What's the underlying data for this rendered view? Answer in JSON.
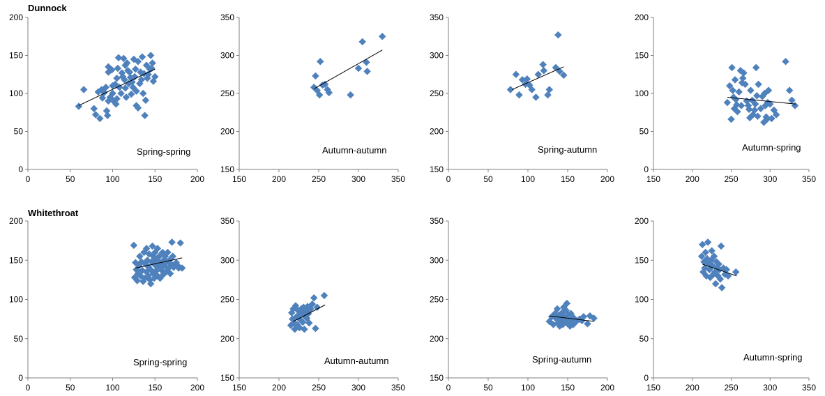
{
  "figure": {
    "row_titles": [
      "Dunnock",
      "Whitethroat"
    ]
  },
  "colors": {
    "point": "#4F81BD",
    "trend": "#000000",
    "axis": "#7f7f7f"
  },
  "chart_data": [
    {
      "type": "scatter",
      "species": "Dunnock",
      "annotation": "Spring-spring",
      "xlim": [
        0,
        200
      ],
      "ylim": [
        0,
        200
      ],
      "xticks": [
        0,
        50,
        100,
        150,
        200
      ],
      "yticks": [
        0,
        50,
        100,
        150,
        200
      ],
      "points": [
        [
          60,
          83
        ],
        [
          66,
          105
        ],
        [
          78,
          80
        ],
        [
          80,
          72
        ],
        [
          83,
          102
        ],
        [
          85,
          67
        ],
        [
          87,
          105
        ],
        [
          88,
          94
        ],
        [
          90,
          101
        ],
        [
          92,
          108
        ],
        [
          93,
          77
        ],
        [
          94,
          71
        ],
        [
          95,
          90
        ],
        [
          95,
          128
        ],
        [
          95,
          135
        ],
        [
          97,
          95
        ],
        [
          99,
          131
        ],
        [
          100,
          100
        ],
        [
          100,
          110
        ],
        [
          101,
          90
        ],
        [
          103,
          112
        ],
        [
          104,
          86
        ],
        [
          105,
          120
        ],
        [
          105,
          93
        ],
        [
          106,
          133
        ],
        [
          107,
          147
        ],
        [
          108,
          108
        ],
        [
          110,
          100
        ],
        [
          111,
          127
        ],
        [
          112,
          122
        ],
        [
          113,
          146
        ],
        [
          114,
          118
        ],
        [
          115,
          107
        ],
        [
          116,
          95
        ],
        [
          117,
          140
        ],
        [
          118,
          130
        ],
        [
          119,
          113
        ],
        [
          120,
          128
        ],
        [
          121,
          121
        ],
        [
          122,
          99
        ],
        [
          123,
          115
        ],
        [
          124,
          108
        ],
        [
          125,
          145
        ],
        [
          126,
          122
        ],
        [
          127,
          132
        ],
        [
          128,
          84
        ],
        [
          128,
          103
        ],
        [
          130,
          81
        ],
        [
          130,
          142
        ],
        [
          132,
          113
        ],
        [
          133,
          128
        ],
        [
          134,
          118
        ],
        [
          135,
          148
        ],
        [
          136,
          100
        ],
        [
          137,
          126
        ],
        [
          138,
          71
        ],
        [
          139,
          91
        ],
        [
          140,
          137
        ],
        [
          141,
          120
        ],
        [
          142,
          125
        ],
        [
          144,
          132
        ],
        [
          145,
          150
        ],
        [
          146,
          133
        ],
        [
          147,
          140
        ],
        [
          148,
          116
        ],
        [
          150,
          122
        ],
        [
          115,
          137
        ]
      ],
      "trend": [
        [
          60,
          84
        ],
        [
          150,
          132
        ]
      ]
    },
    {
      "type": "scatter",
      "species": "Dunnock",
      "annotation": "Autumn-autumn",
      "xlim": [
        150,
        350
      ],
      "ylim": [
        150,
        350
      ],
      "xticks": [
        150,
        200,
        250,
        300,
        350
      ],
      "yticks": [
        150,
        200,
        250,
        300,
        350
      ],
      "points": [
        [
          244,
          258
        ],
        [
          246,
          273
        ],
        [
          248,
          254
        ],
        [
          251,
          248
        ],
        [
          252,
          292
        ],
        [
          255,
          261
        ],
        [
          258,
          262
        ],
        [
          261,
          255
        ],
        [
          263,
          251
        ],
        [
          290,
          248
        ],
        [
          300,
          283
        ],
        [
          305,
          318
        ],
        [
          310,
          291
        ],
        [
          311,
          279
        ],
        [
          330,
          325
        ]
      ],
      "trend": [
        [
          244,
          256
        ],
        [
          330,
          307
        ]
      ]
    },
    {
      "type": "scatter",
      "species": "Dunnock",
      "annotation": "Spring-autumn",
      "xlim": [
        0,
        200
      ],
      "ylim": [
        150,
        350
      ],
      "xticks": [
        0,
        50,
        100,
        150,
        200
      ],
      "yticks": [
        150,
        200,
        250,
        300,
        350
      ],
      "points": [
        [
          78,
          255
        ],
        [
          85,
          275
        ],
        [
          89,
          248
        ],
        [
          93,
          268
        ],
        [
          97,
          262
        ],
        [
          99,
          269
        ],
        [
          102,
          261
        ],
        [
          105,
          255
        ],
        [
          110,
          245
        ],
        [
          113,
          275
        ],
        [
          119,
          288
        ],
        [
          120,
          280
        ],
        [
          125,
          248
        ],
        [
          127,
          255
        ],
        [
          135,
          284
        ],
        [
          138,
          327
        ],
        [
          140,
          279
        ],
        [
          145,
          274
        ]
      ],
      "trend": [
        [
          80,
          255
        ],
        [
          145,
          285
        ]
      ]
    },
    {
      "type": "scatter",
      "species": "Dunnock",
      "annotation": "Autumn-spring",
      "xlim": [
        150,
        350
      ],
      "ylim": [
        0,
        200
      ],
      "xticks": [
        150,
        200,
        250,
        300,
        350
      ],
      "yticks": [
        0,
        50,
        100,
        150,
        200
      ],
      "points": [
        [
          245,
          88
        ],
        [
          248,
          110
        ],
        [
          250,
          66
        ],
        [
          251,
          134
        ],
        [
          252,
          104
        ],
        [
          253,
          95
        ],
        [
          254,
          80
        ],
        [
          255,
          118
        ],
        [
          256,
          92
        ],
        [
          257,
          85
        ],
        [
          258,
          76
        ],
        [
          260,
          102
        ],
        [
          262,
          130
        ],
        [
          263,
          84
        ],
        [
          264,
          114
        ],
        [
          265,
          120
        ],
        [
          266,
          127
        ],
        [
          268,
          112
        ],
        [
          270,
          90
        ],
        [
          272,
          84
        ],
        [
          273,
          79
        ],
        [
          274,
          68
        ],
        [
          275,
          104
        ],
        [
          277,
          91
        ],
        [
          278,
          72
        ],
        [
          280,
          78
        ],
        [
          281,
          86
        ],
        [
          282,
          134
        ],
        [
          283,
          97
        ],
        [
          284,
          70
        ],
        [
          285,
          112
        ],
        [
          288,
          80
        ],
        [
          290,
          96
        ],
        [
          292,
          62
        ],
        [
          293,
          100
        ],
        [
          294,
          84
        ],
        [
          295,
          69
        ],
        [
          296,
          66
        ],
        [
          297,
          88
        ],
        [
          298,
          104
        ],
        [
          300,
          86
        ],
        [
          302,
          67
        ],
        [
          305,
          78
        ],
        [
          308,
          72
        ],
        [
          320,
          142
        ],
        [
          325,
          104
        ],
        [
          328,
          91
        ],
        [
          332,
          84
        ]
      ],
      "trend": [
        [
          245,
          95
        ],
        [
          333,
          86
        ]
      ]
    },
    {
      "type": "scatter",
      "species": "Whitethroat",
      "annotation": "Spring-spring",
      "xlim": [
        0,
        200
      ],
      "ylim": [
        0,
        200
      ],
      "xticks": [
        0,
        50,
        100,
        150,
        200
      ],
      "yticks": [
        0,
        50,
        100,
        150,
        200
      ],
      "points": [
        [
          125,
          169
        ],
        [
          126,
          128
        ],
        [
          127,
          147
        ],
        [
          128,
          138
        ],
        [
          129,
          124
        ],
        [
          130,
          133
        ],
        [
          131,
          143
        ],
        [
          132,
          155
        ],
        [
          133,
          130
        ],
        [
          134,
          148
        ],
        [
          135,
          137
        ],
        [
          136,
          123
        ],
        [
          137,
          160
        ],
        [
          138,
          127
        ],
        [
          139,
          145
        ],
        [
          140,
          165
        ],
        [
          140,
          135
        ],
        [
          141,
          150
        ],
        [
          142,
          130
        ],
        [
          142,
          142
        ],
        [
          143,
          158
        ],
        [
          144,
          125
        ],
        [
          145,
          120
        ],
        [
          145,
          138
        ],
        [
          146,
          148
        ],
        [
          147,
          168
        ],
        [
          148,
          133
        ],
        [
          148,
          155
        ],
        [
          149,
          127
        ],
        [
          150,
          144
        ],
        [
          150,
          160
        ],
        [
          151,
          136
        ],
        [
          152,
          150
        ],
        [
          153,
          130
        ],
        [
          153,
          165
        ],
        [
          154,
          142
        ],
        [
          155,
          155
        ],
        [
          156,
          127
        ],
        [
          157,
          147
        ],
        [
          158,
          137
        ],
        [
          159,
          160
        ],
        [
          160,
          150
        ],
        [
          160,
          132
        ],
        [
          161,
          143
        ],
        [
          162,
          155
        ],
        [
          163,
          135
        ],
        [
          164,
          148
        ],
        [
          165,
          160
        ],
        [
          166,
          140
        ],
        [
          167,
          150
        ],
        [
          168,
          133
        ],
        [
          169,
          145
        ],
        [
          170,
          173
        ],
        [
          171,
          155
        ],
        [
          172,
          141
        ],
        [
          175,
          147
        ],
        [
          177,
          143
        ],
        [
          178,
          140
        ],
        [
          180,
          172
        ],
        [
          182,
          140
        ]
      ],
      "trend": [
        [
          127,
          140
        ],
        [
          182,
          153
        ]
      ]
    },
    {
      "type": "scatter",
      "species": "Whitethroat",
      "annotation": "Autumn-autumn",
      "xlim": [
        150,
        350
      ],
      "ylim": [
        150,
        350
      ],
      "xticks": [
        150,
        200,
        250,
        300,
        350
      ],
      "yticks": [
        150,
        200,
        250,
        300,
        350
      ],
      "points": [
        [
          215,
          217
        ],
        [
          216,
          233
        ],
        [
          217,
          225
        ],
        [
          218,
          238
        ],
        [
          219,
          220
        ],
        [
          220,
          212
        ],
        [
          221,
          242
        ],
        [
          222,
          228
        ],
        [
          223,
          218
        ],
        [
          224,
          236
        ],
        [
          225,
          230
        ],
        [
          226,
          214
        ],
        [
          227,
          224
        ],
        [
          228,
          238
        ],
        [
          229,
          233
        ],
        [
          230,
          221
        ],
        [
          231,
          240
        ],
        [
          232,
          212
        ],
        [
          233,
          228
        ],
        [
          234,
          235
        ],
        [
          235,
          226
        ],
        [
          236,
          241
        ],
        [
          237,
          232
        ],
        [
          238,
          220
        ],
        [
          240,
          238
        ],
        [
          242,
          244
        ],
        [
          244,
          252
        ],
        [
          246,
          213
        ],
        [
          248,
          240
        ],
        [
          257,
          255
        ]
      ],
      "trend": [
        [
          218,
          222
        ],
        [
          258,
          243
        ]
      ]
    },
    {
      "type": "scatter",
      "species": "Whitethroat",
      "annotation": "Spring-autumn",
      "xlim": [
        0,
        200
      ],
      "ylim": [
        150,
        350
      ],
      "xticks": [
        0,
        50,
        100,
        150,
        200
      ],
      "yticks": [
        150,
        200,
        250,
        300,
        350
      ],
      "points": [
        [
          127,
          222
        ],
        [
          130,
          228
        ],
        [
          132,
          218
        ],
        [
          134,
          232
        ],
        [
          136,
          225
        ],
        [
          137,
          238
        ],
        [
          138,
          220
        ],
        [
          139,
          230
        ],
        [
          140,
          216
        ],
        [
          141,
          226
        ],
        [
          142,
          222
        ],
        [
          143,
          233
        ],
        [
          144,
          218
        ],
        [
          145,
          240
        ],
        [
          146,
          228
        ],
        [
          147,
          223
        ],
        [
          148,
          236
        ],
        [
          149,
          245
        ],
        [
          150,
          219
        ],
        [
          151,
          230
        ],
        [
          152,
          225
        ],
        [
          153,
          216
        ],
        [
          154,
          232
        ],
        [
          155,
          222
        ],
        [
          156,
          228
        ],
        [
          157,
          218
        ],
        [
          158,
          226
        ],
        [
          160,
          221
        ],
        [
          165,
          225
        ],
        [
          168,
          223
        ],
        [
          170,
          228
        ],
        [
          175,
          219
        ],
        [
          178,
          229
        ],
        [
          183,
          226
        ]
      ],
      "trend": [
        [
          127,
          229
        ],
        [
          183,
          222
        ]
      ]
    },
    {
      "type": "scatter",
      "species": "Whitethroat",
      "annotation": "Autumn-spring",
      "xlim": [
        150,
        350
      ],
      "ylim": [
        0,
        200
      ],
      "xticks": [
        150,
        200,
        250,
        300,
        350
      ],
      "yticks": [
        0,
        50,
        100,
        150,
        200
      ],
      "points": [
        [
          212,
          155
        ],
        [
          213,
          170
        ],
        [
          214,
          135
        ],
        [
          215,
          148
        ],
        [
          216,
          140
        ],
        [
          217,
          160
        ],
        [
          218,
          130
        ],
        [
          219,
          152
        ],
        [
          220,
          173
        ],
        [
          221,
          145
        ],
        [
          222,
          138
        ],
        [
          223,
          128
        ],
        [
          224,
          150
        ],
        [
          225,
          162
        ],
        [
          226,
          143
        ],
        [
          227,
          132
        ],
        [
          228,
          155
        ],
        [
          229,
          135
        ],
        [
          230,
          120
        ],
        [
          231,
          148
        ],
        [
          232,
          140
        ],
        [
          233,
          130
        ],
        [
          234,
          145
        ],
        [
          235,
          138
        ],
        [
          236,
          126
        ],
        [
          237,
          168
        ],
        [
          238,
          115
        ],
        [
          240,
          140
        ],
        [
          242,
          132
        ],
        [
          244,
          138
        ],
        [
          246,
          130
        ],
        [
          256,
          135
        ]
      ],
      "trend": [
        [
          213,
          145
        ],
        [
          257,
          130
        ]
      ]
    }
  ]
}
